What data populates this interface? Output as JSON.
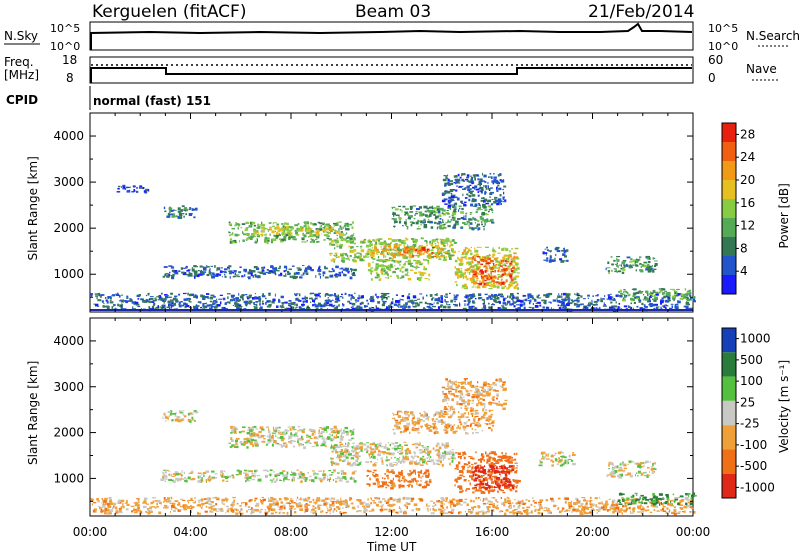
{
  "header": {
    "station": "Kerguelen (fitACF)",
    "beam": "Beam 03",
    "date": "21/Feb/2014"
  },
  "sky_panel": {
    "left_label": "N.Sky",
    "right_label": "N.Search",
    "left_ticks": [
      "10^5",
      "10^0"
    ],
    "right_ticks": [
      "10^5",
      "10^0"
    ]
  },
  "freq_panel": {
    "left_label_line1": "Freq.",
    "left_label_line2": "[MHz]",
    "left_ticks": [
      "18",
      "8"
    ],
    "right_ticks": [
      "60",
      "0"
    ],
    "right_label": "Nave"
  },
  "cpid": {
    "label": "CPID",
    "value": "normal (fast) 151"
  },
  "colors": {
    "power_scale": [
      "#1a1aff",
      "#2255cc",
      "#337755",
      "#55aa55",
      "#88cc44",
      "#e6c020",
      "#f09a18",
      "#f06010",
      "#e82010"
    ],
    "velocity_scale": [
      "#1540b8",
      "#2a7c3a",
      "#55c040",
      "#c8c8c4",
      "#f0a038",
      "#f07018",
      "#e02818"
    ],
    "ground_scatter": "#c0c0bc",
    "baseline": "#1a2aa0"
  },
  "chart_data": [
    {
      "type": "heatmap",
      "name": "Power",
      "ylabel": "Slant Range [km]",
      "xlabel": "Time UT",
      "x_ticks": [
        "00:00",
        "04:00",
        "08:00",
        "12:00",
        "16:00",
        "20:00",
        "00:00"
      ],
      "x_range_hours": [
        0,
        24
      ],
      "y_ticks": [
        1000,
        2000,
        3000,
        4000
      ],
      "ylim": [
        180,
        4500
      ],
      "colorbar": {
        "label": "Power [dB]",
        "ticks": [
          "4",
          "8",
          "12",
          "16",
          "20",
          "24",
          "28"
        ],
        "range": [
          0,
          30
        ]
      },
      "regions": [
        {
          "t0": 2.8,
          "t1": 4.2,
          "r0": 2250,
          "r1": 2500,
          "v": 8
        },
        {
          "t0": 5.5,
          "t1": 10.5,
          "r0": 1700,
          "r1": 2150,
          "v": 12
        },
        {
          "t0": 6.5,
          "t1": 10.0,
          "r0": 1850,
          "r1": 2050,
          "v": 17
        },
        {
          "t0": 9.5,
          "t1": 14.5,
          "r0": 1300,
          "r1": 1800,
          "v": 14
        },
        {
          "t0": 11.0,
          "t1": 14.0,
          "r0": 1400,
          "r1": 1650,
          "v": 20
        },
        {
          "t0": 12.5,
          "t1": 13.8,
          "r0": 1450,
          "r1": 1600,
          "v": 24
        },
        {
          "t0": 14.5,
          "t1": 17.0,
          "r0": 700,
          "r1": 1600,
          "v": 18
        },
        {
          "t0": 15.2,
          "t1": 16.8,
          "r0": 800,
          "r1": 1400,
          "v": 25
        },
        {
          "t0": 11.0,
          "t1": 13.5,
          "r0": 900,
          "r1": 1300,
          "v": 15
        },
        {
          "t0": 2.8,
          "t1": 10.5,
          "r0": 950,
          "r1": 1200,
          "v": 6
        },
        {
          "t0": 12.0,
          "t1": 16.0,
          "r0": 2000,
          "r1": 2500,
          "v": 10
        },
        {
          "t0": 14.0,
          "t1": 16.5,
          "r0": 2500,
          "r1": 3200,
          "v": 6
        },
        {
          "t0": 18.0,
          "t1": 19.0,
          "r0": 1300,
          "r1": 1600,
          "v": 6
        },
        {
          "t0": 20.5,
          "t1": 22.5,
          "r0": 1050,
          "r1": 1400,
          "v": 10
        },
        {
          "t0": 0.0,
          "t1": 24.0,
          "r0": 250,
          "r1": 600,
          "v": 6
        },
        {
          "t0": 21.0,
          "t1": 24.0,
          "r0": 450,
          "r1": 700,
          "v": 12
        },
        {
          "t0": 1.0,
          "t1": 2.5,
          "r0": 2800,
          "r1": 2950,
          "v": 5
        }
      ]
    },
    {
      "type": "heatmap",
      "name": "Velocity",
      "ylabel": "Slant Range [km]",
      "xlabel": "Time UT",
      "x_ticks": [
        "00:00",
        "04:00",
        "08:00",
        "12:00",
        "16:00",
        "20:00",
        "00:00"
      ],
      "x_range_hours": [
        0,
        24
      ],
      "y_ticks": [
        1000,
        2000,
        3000,
        4000
      ],
      "ylim": [
        180,
        4500
      ],
      "colorbar": {
        "label": "Velocity [m s⁻¹]",
        "ticks": [
          "1000",
          "500",
          "100",
          "25",
          "-25",
          "-100",
          "-500",
          "-1000"
        ],
        "range": [
          -1000,
          1000
        ]
      },
      "regions": [
        {
          "t0": 2.8,
          "t1": 4.2,
          "r0": 2250,
          "r1": 2500,
          "v": 0
        },
        {
          "t0": 5.5,
          "t1": 10.5,
          "r0": 1700,
          "r1": 2150,
          "v": 0
        },
        {
          "t0": 9.5,
          "t1": 14.5,
          "r0": 1300,
          "r1": 1800,
          "v": 0
        },
        {
          "t0": 11.0,
          "t1": 13.5,
          "r0": 800,
          "r1": 1200,
          "v": -150
        },
        {
          "t0": 14.5,
          "t1": 17.0,
          "r0": 700,
          "r1": 1600,
          "v": -400
        },
        {
          "t0": 15.2,
          "t1": 16.8,
          "r0": 800,
          "r1": 1300,
          "v": -800
        },
        {
          "t0": 2.8,
          "t1": 10.5,
          "r0": 950,
          "r1": 1200,
          "v": 0
        },
        {
          "t0": 12.0,
          "t1": 16.0,
          "r0": 2000,
          "r1": 2500,
          "v": -60
        },
        {
          "t0": 14.0,
          "t1": 16.5,
          "r0": 2500,
          "r1": 3200,
          "v": -60
        },
        {
          "t0": 20.5,
          "t1": 22.5,
          "r0": 1050,
          "r1": 1400,
          "v": 0
        },
        {
          "t0": 0.0,
          "t1": 24.0,
          "r0": 250,
          "r1": 600,
          "v": -60
        },
        {
          "t0": 21.0,
          "t1": 24.0,
          "r0": 450,
          "r1": 700,
          "v": 80
        },
        {
          "t0": 17.8,
          "t1": 19.2,
          "r0": 1300,
          "r1": 1600,
          "v": 0
        }
      ]
    }
  ]
}
